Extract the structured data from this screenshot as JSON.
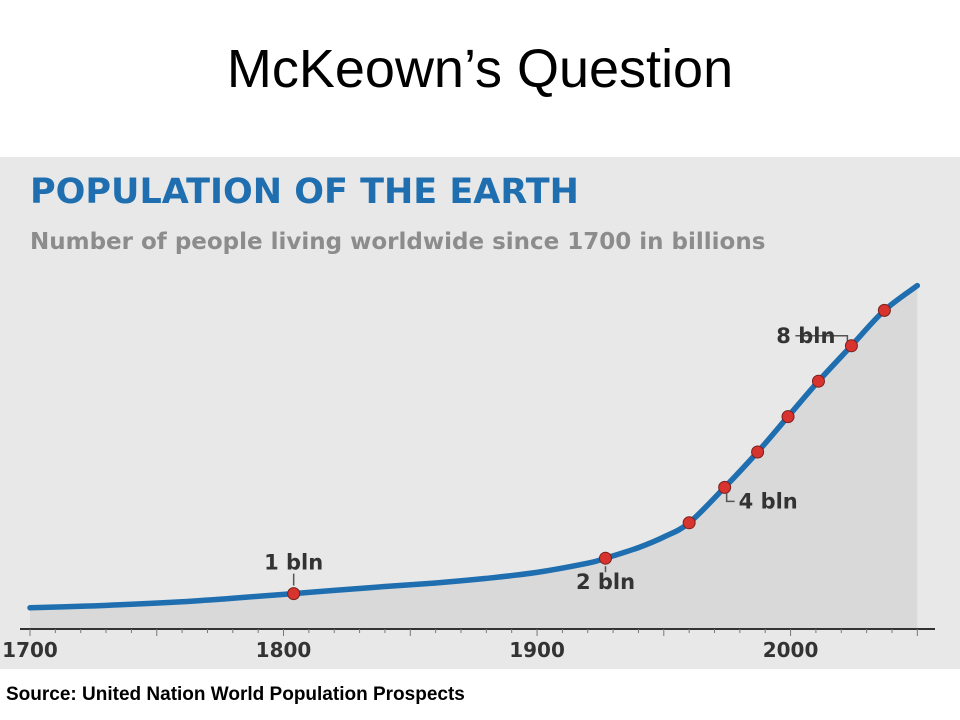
{
  "slide": {
    "title": "McKeown’s Question",
    "source": "Source: United Nation World Population Prospects"
  },
  "chart_data": {
    "type": "line",
    "title": "POPULATION OF THE EARTH",
    "subtitle": "Number of people living worldwide since 1700 in billions",
    "xlim": [
      1700,
      2055
    ],
    "ylim": [
      0,
      10
    ],
    "x_ticks": [
      1700,
      1800,
      1900,
      2000
    ],
    "grid": false,
    "series": [
      {
        "values": [
          [
            1700,
            0.6
          ],
          [
            1720,
            0.64
          ],
          [
            1740,
            0.7
          ],
          [
            1760,
            0.77
          ],
          [
            1780,
            0.87
          ],
          [
            1804,
            1.0
          ],
          [
            1820,
            1.09
          ],
          [
            1840,
            1.2
          ],
          [
            1860,
            1.3
          ],
          [
            1880,
            1.43
          ],
          [
            1900,
            1.6
          ],
          [
            1920,
            1.86
          ],
          [
            1927,
            2.0
          ],
          [
            1940,
            2.3
          ],
          [
            1950,
            2.6
          ],
          [
            1960,
            3.0
          ],
          [
            1974,
            4.0
          ],
          [
            1987,
            5.0
          ],
          [
            1999,
            6.0
          ],
          [
            2011,
            7.0
          ],
          [
            2024,
            8.0
          ],
          [
            2037,
            9.0
          ],
          [
            2050,
            9.7
          ]
        ]
      }
    ],
    "markers": [
      {
        "x": 1804,
        "y": 1.0
      },
      {
        "x": 1927,
        "y": 2.0
      },
      {
        "x": 1960,
        "y": 3.0
      },
      {
        "x": 1974,
        "y": 4.0
      },
      {
        "x": 1987,
        "y": 5.0
      },
      {
        "x": 1999,
        "y": 6.0
      },
      {
        "x": 2011,
        "y": 7.0
      },
      {
        "x": 2024,
        "y": 8.0
      },
      {
        "x": 2037,
        "y": 9.0
      }
    ],
    "annotations": [
      {
        "text": "1 bln",
        "x": 1804,
        "y": 1.0,
        "pos": "above"
      },
      {
        "text": "2 bln",
        "x": 1927,
        "y": 2.0,
        "pos": "below"
      },
      {
        "text": "4 bln",
        "x": 1974,
        "y": 4.0,
        "pos": "right"
      },
      {
        "text": "8 bln",
        "x": 2024,
        "y": 8.0,
        "pos": "left"
      }
    ],
    "colors": {
      "line": "#1f6fb0",
      "marker": "#d7342f",
      "area": "#d9d9d9",
      "title": "#1f6fb0",
      "subtitle": "#8c8c8c",
      "text": "#333333",
      "panel": "#e8e8e8"
    }
  }
}
